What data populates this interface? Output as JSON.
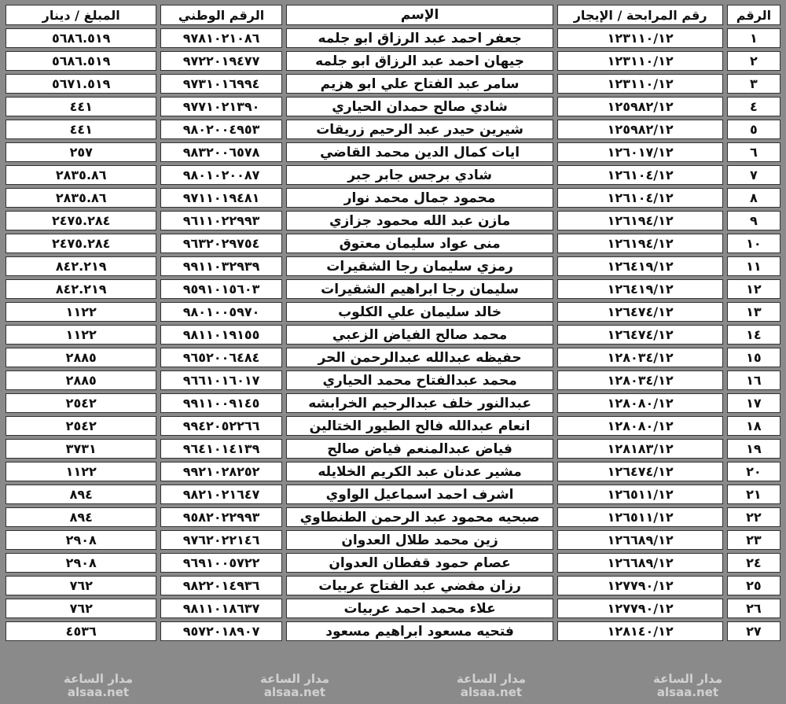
{
  "headers": {
    "no": "الرقم",
    "murabaha": "رقم المرابحة / الإيجار",
    "name": "الإسم",
    "national_id": "الرقم الوطني",
    "amount": "المبلغ / دينار"
  },
  "rows": [
    {
      "no": "١",
      "murabaha": "١٢٣١١٠/١٢",
      "name": "جعفر احمد عبد الرزاق ابو جلمه",
      "national_id": "٩٧٨١٠٢١٠٨٦",
      "amount": "٥٦٨٦.٥١٩"
    },
    {
      "no": "٢",
      "murabaha": "١٢٣١١٠/١٢",
      "name": "جيهان احمد عبد الرزاق ابو جلمه",
      "national_id": "٩٧٢٢٠١٩٤٧٧",
      "amount": "٥٦٨٦.٥١٩"
    },
    {
      "no": "٣",
      "murabaha": "١٢٣١١٠/١٢",
      "name": "سامر عبد الفتاح علي ابو هزيم",
      "national_id": "٩٧٣١٠١٦٩٩٤",
      "amount": "٥٦٧١.٥١٩"
    },
    {
      "no": "٤",
      "murabaha": "١٢٥٩٨٢/١٢",
      "name": "شادي صالح حمدان الحياري",
      "national_id": "٩٧٧١٠٢١٣٩٠",
      "amount": "٤٤١"
    },
    {
      "no": "٥",
      "murabaha": "١٢٥٩٨٢/١٢",
      "name": "شيرين حيدر عبد الرحيم زريقات",
      "national_id": "٩٨٠٢٠٠٤٩٥٣",
      "amount": "٤٤١"
    },
    {
      "no": "٦",
      "murabaha": "١٢٦٠١٧/١٢",
      "name": "ايات كمال الدين محمد القاضي",
      "national_id": "٩٨٣٢٠٠٦٥٧٨",
      "amount": "٢٥٧"
    },
    {
      "no": "٧",
      "murabaha": "١٢٦١٠٤/١٢",
      "name": "شادي برجس جابر جبر",
      "national_id": "٩٨٠١٠٢٠٠٨٧",
      "amount": "٢٨٣٥.٨٦"
    },
    {
      "no": "٨",
      "murabaha": "١٢٦١٠٤/١٢",
      "name": "محمود جمال محمد نوار",
      "national_id": "٩٧١١٠١٩٤٨١",
      "amount": "٢٨٣٥.٨٦"
    },
    {
      "no": "٩",
      "murabaha": "١٢٦١٩٤/١٢",
      "name": "مازن عبد الله محمود جزازي",
      "national_id": "٩٦١١٠٢٢٩٩٣",
      "amount": "٢٤٧٥.٢٨٤"
    },
    {
      "no": "١٠",
      "murabaha": "١٢٦١٩٤/١٢",
      "name": "منى عواد سليمان معتوق",
      "national_id": "٩٦٣٢٠٢٩٧٥٤",
      "amount": "٢٤٧٥.٢٨٤"
    },
    {
      "no": "١١",
      "murabaha": "١٢٦٤١٩/١٢",
      "name": "رمزي سليمان رجا الشقيرات",
      "national_id": "٩٩١١٠٣٢٩٣٩",
      "amount": "٨٤٢.٢١٩"
    },
    {
      "no": "١٢",
      "murabaha": "١٢٦٤١٩/١٢",
      "name": "سليمان رجا ابراهيم الشقيرات",
      "national_id": "٩٥٩١٠١٥٦٠٣",
      "amount": "٨٤٢.٢١٩"
    },
    {
      "no": "١٣",
      "murabaha": "١٢٦٤٧٤/١٢",
      "name": "خالد سليمان علي الكلوب",
      "national_id": "٩٨٠١٠٠٥٩٧٠",
      "amount": "١١٢٢"
    },
    {
      "no": "١٤",
      "murabaha": "١٢٦٤٧٤/١٢",
      "name": "محمد صالح الفياض الزعبي",
      "national_id": "٩٨١١٠١٩١٥٥",
      "amount": "١١٢٢"
    },
    {
      "no": "١٥",
      "murabaha": "١٢٨٠٣٤/١٢",
      "name": "حفيظه عبدالله عبدالرحمن الحر",
      "national_id": "٩٦٥٢٠٠٦٤٨٤",
      "amount": "٢٨٨٥"
    },
    {
      "no": "١٦",
      "murabaha": "١٢٨٠٣٤/١٢",
      "name": "محمد عبدالفتاح محمد الحياري",
      "national_id": "٩٦٦١٠١٦٠١٧",
      "amount": "٢٨٨٥"
    },
    {
      "no": "١٧",
      "murabaha": "١٢٨٠٨٠/١٢",
      "name": "عبدالنور خلف عبدالرحيم الخرابشه",
      "national_id": "٩٩١١٠٠٩١٤٥",
      "amount": "٢٥٤٢"
    },
    {
      "no": "١٨",
      "murabaha": "١٢٨٠٨٠/١٢",
      "name": "انعام عبدالله فالح الطيور الختالين",
      "national_id": "٩٩٤٢٠٥٢٢٦٦",
      "amount": "٢٥٤٢"
    },
    {
      "no": "١٩",
      "murabaha": "١٢٨١٨٣/١٢",
      "name": "فياض عبدالمنعم فياض صالح",
      "national_id": "٩٦٤١٠١٤١٣٩",
      "amount": "٣٧٣١"
    },
    {
      "no": "٢٠",
      "murabaha": "١٢٦٤٧٤/١٢",
      "name": "مشير عدنان عبد الكريم الخلايله",
      "national_id": "٩٩٢١٠٢٨٢٥٢",
      "amount": "١١٢٢"
    },
    {
      "no": "٢١",
      "murabaha": "١٢٦٥١١/١٢",
      "name": "اشرف احمد اسماعيل الواوي",
      "national_id": "٩٨٢١٠٢١٦٤٧",
      "amount": "٨٩٤"
    },
    {
      "no": "٢٢",
      "murabaha": "١٢٦٥١١/١٢",
      "name": "صبحيه محمود عبد الرحمن الطنطاوي",
      "national_id": "٩٥٨٢٠٢٢٩٩٣",
      "amount": "٨٩٤"
    },
    {
      "no": "٢٣",
      "murabaha": "١٢٦٦٨٩/١٢",
      "name": "زين محمد طلال العدوان",
      "national_id": "٩٧٦٢٠٢٢١٤٦",
      "amount": "٢٩٠٨"
    },
    {
      "no": "٢٤",
      "murabaha": "١٢٦٦٨٩/١٢",
      "name": "عصام حمود قفطان العدوان",
      "national_id": "٩٦٩١٠٠٥٧٢٢",
      "amount": "٢٩٠٨"
    },
    {
      "no": "٢٥",
      "murabaha": "١٢٧٧٩٠/١٢",
      "name": "رزان مفضي عبد الفتاح عربيات",
      "national_id": "٩٨٢٢٠١٤٩٣٦",
      "amount": "٧٦٢"
    },
    {
      "no": "٢٦",
      "murabaha": "١٢٧٧٩٠/١٢",
      "name": "علاء محمد احمد عربيات",
      "national_id": "٩٨١١٠١٨٦٣٧",
      "amount": "٧٦٢"
    },
    {
      "no": "٢٧",
      "murabaha": "١٢٨١٤٠/١٢",
      "name": "فتحيه مسعود ابراهيم مسعود",
      "national_id": "٩٥٧٢٠١٨٩٠٧",
      "amount": "٤٥٣٦"
    }
  ],
  "watermark": {
    "line1": "مدار الساعة",
    "line2": "alsaa.net"
  }
}
